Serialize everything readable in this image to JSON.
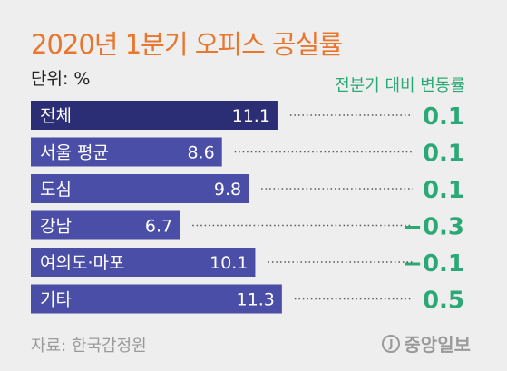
{
  "header": {
    "title": "2020년 1분기 오피스 공실률",
    "unit": "단위: %",
    "change_header": "전분기 대비 변동률"
  },
  "chart_data": {
    "type": "bar",
    "orientation": "horizontal",
    "title": "2020년 1분기 오피스 공실률",
    "unit": "단위: %",
    "categories": [
      "전체",
      "서울 평균",
      "도심",
      "강남",
      "여의도·마포",
      "기타"
    ],
    "values": [
      11.1,
      8.6,
      9.8,
      6.7,
      10.1,
      11.3
    ],
    "changes_label": "전분기 대비 변동률",
    "changes": [
      "0.1",
      "0.1",
      "0.1",
      "−0.3",
      "−0.1",
      "0.5"
    ],
    "bar_colors": [
      "#2b2e74",
      "#4a4ea6",
      "#4a4ea6",
      "#4a4ea6",
      "#4a4ea6",
      "#4a4ea6"
    ],
    "change_color": "#2aa876",
    "grid": false
  },
  "footer": {
    "source": "자료: 한국감정원",
    "logo_mark": "J",
    "logo_text": "중앙일보"
  }
}
